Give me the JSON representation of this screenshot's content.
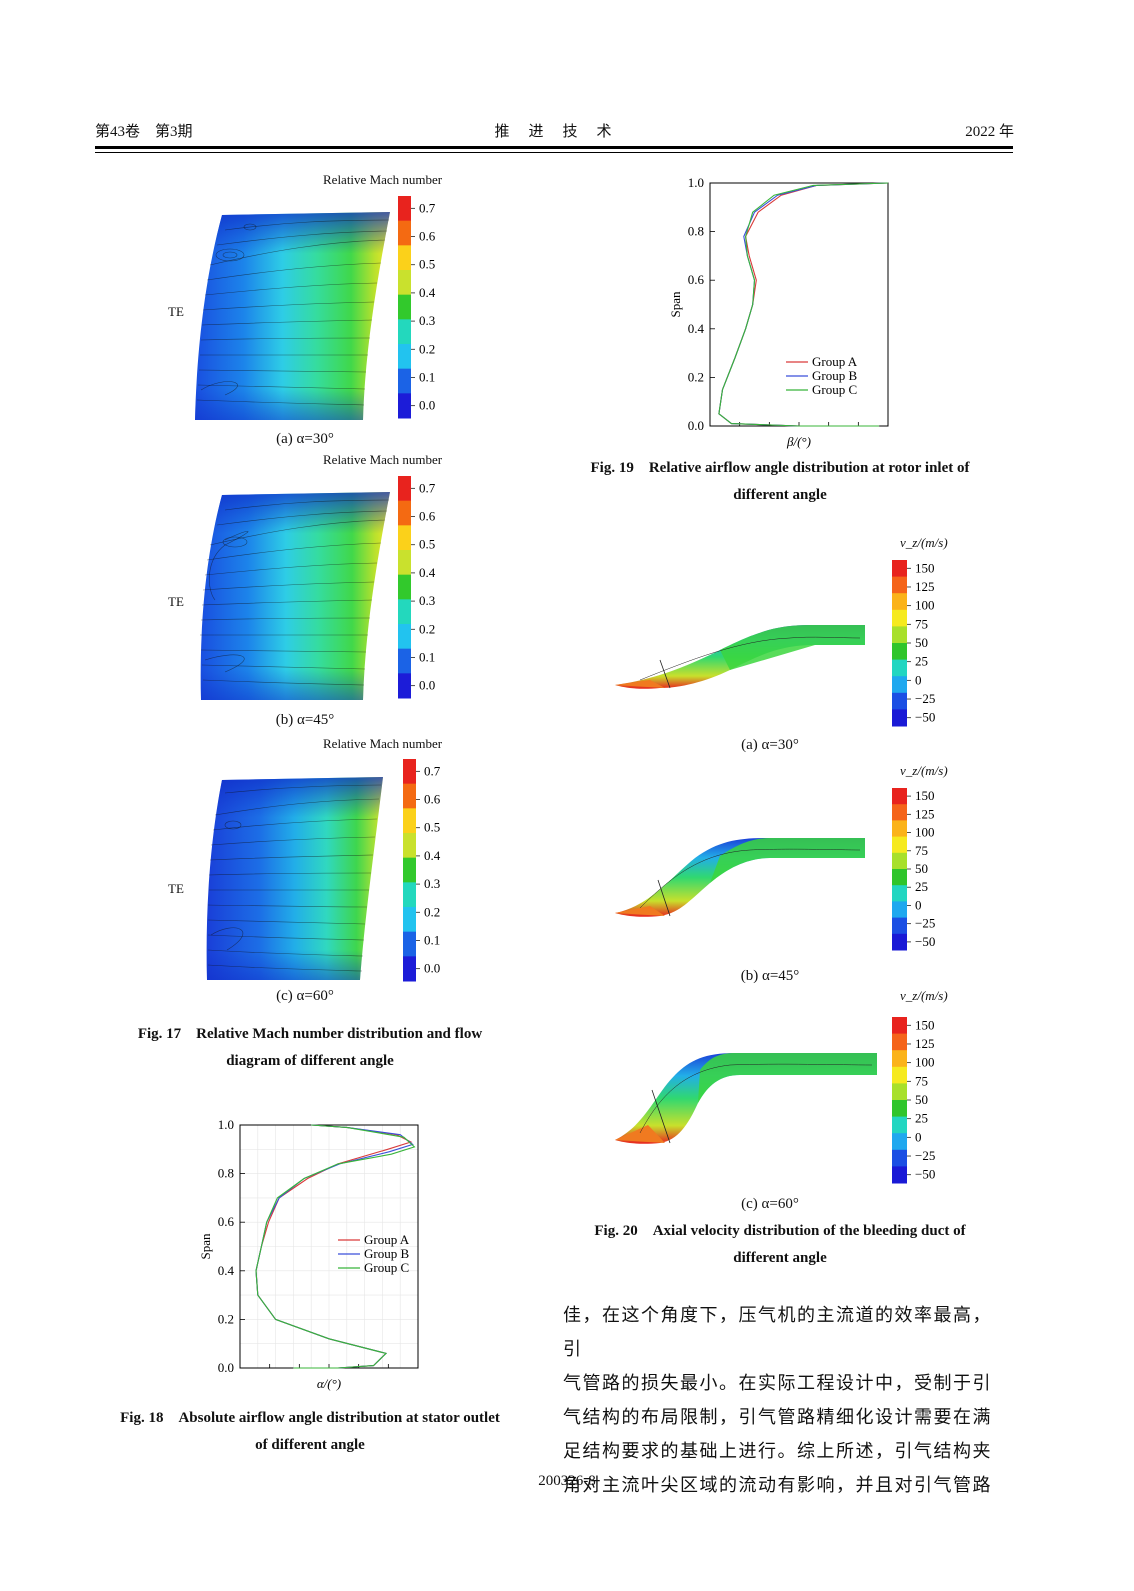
{
  "header": {
    "volume": "第43卷　第3期",
    "journal": "推　进　技　术",
    "year": "2022 年"
  },
  "fig17": {
    "colorbar_title": "Relative Mach number",
    "colorbar_ticks": [
      "0.7",
      "0.6",
      "0.5",
      "0.4",
      "0.3",
      "0.2",
      "0.1",
      "0.0"
    ],
    "colorbar_colors": [
      "#e8231e",
      "#f46a12",
      "#fbd11a",
      "#c9e12d",
      "#32c92c",
      "#23d8bd",
      "#22c3ef",
      "#1b63e6",
      "#1c1cd8"
    ],
    "te_label": "TE",
    "panels": [
      "(a) α=30°",
      "(b) α=45°",
      "(c) α=60°"
    ],
    "caption_line1": "Fig. 17　Relative Mach number distribution and flow",
    "caption_line2": "diagram of different angle"
  },
  "fig18": {
    "caption_line1": "Fig. 18　Absolute airflow angle distribution at stator outlet",
    "caption_line2": "of different angle",
    "series_colors": {
      "Group A": "#d93a3a",
      "Group B": "#3a4fd9",
      "Group C": "#38b53a"
    }
  },
  "fig19": {
    "caption_line1": "Fig. 19　Relative airflow angle distribution at rotor inlet of",
    "caption_line2": "different angle",
    "series_colors": {
      "Group A": "#d93a3a",
      "Group B": "#3a4fd9",
      "Group C": "#38b53a"
    }
  },
  "fig20": {
    "colorbar_title": "v_z/(m/s)",
    "colorbar_ticks": [
      "150",
      "125",
      "100",
      "75",
      "50",
      "25",
      "0",
      "−25",
      "−50"
    ],
    "colorbar_colors": [
      "#e8231e",
      "#f5641a",
      "#fbb31a",
      "#f6ea1f",
      "#a8e02b",
      "#2fc52b",
      "#22d6c1",
      "#1fa8ef",
      "#1b4fe4",
      "#1a1ad6"
    ],
    "panels": [
      "(a) α=30°",
      "(b) α=45°",
      "(c) α=60°"
    ],
    "caption_line1": "Fig. 20　Axial velocity distribution of the bleeding duct of",
    "caption_line2": "different angle"
  },
  "chart_data": [
    {
      "type": "line",
      "xlabel": "α/(°)",
      "ylabel": "Span",
      "ylim": [
        0,
        1.0
      ],
      "y_ticks": [
        "0.0",
        "0.2",
        "0.4",
        "0.6",
        "0.8",
        "1.0"
      ],
      "legend": "right-center",
      "series": [
        {
          "name": "Group A",
          "color": "#d93a3a",
          "points": [
            [
              0.3,
              0.0
            ],
            [
              0.55,
              0.0
            ],
            [
              0.75,
              0.01
            ],
            [
              0.82,
              0.06
            ],
            [
              0.5,
              0.12
            ],
            [
              0.2,
              0.2
            ],
            [
              0.1,
              0.3
            ],
            [
              0.09,
              0.4
            ],
            [
              0.12,
              0.5
            ],
            [
              0.16,
              0.6
            ],
            [
              0.22,
              0.7
            ],
            [
              0.38,
              0.78
            ],
            [
              0.55,
              0.84
            ],
            [
              0.83,
              0.9
            ],
            [
              0.96,
              0.93
            ],
            [
              0.88,
              0.96
            ],
            [
              0.6,
              0.99
            ],
            [
              0.4,
              1.0
            ]
          ]
        },
        {
          "name": "Group B",
          "color": "#3a4fd9",
          "points": [
            [
              0.3,
              0.0
            ],
            [
              0.55,
              0.0
            ],
            [
              0.75,
              0.01
            ],
            [
              0.82,
              0.06
            ],
            [
              0.5,
              0.12
            ],
            [
              0.2,
              0.2
            ],
            [
              0.1,
              0.3
            ],
            [
              0.09,
              0.4
            ],
            [
              0.12,
              0.5
            ],
            [
              0.15,
              0.6
            ],
            [
              0.22,
              0.7
            ],
            [
              0.36,
              0.78
            ],
            [
              0.56,
              0.84
            ],
            [
              0.84,
              0.89
            ],
            [
              0.97,
              0.92
            ],
            [
              0.9,
              0.96
            ],
            [
              0.6,
              0.99
            ],
            [
              0.4,
              1.0
            ]
          ]
        },
        {
          "name": "Group C",
          "color": "#38b53a",
          "points": [
            [
              0.3,
              0.0
            ],
            [
              0.55,
              0.0
            ],
            [
              0.75,
              0.01
            ],
            [
              0.82,
              0.06
            ],
            [
              0.5,
              0.12
            ],
            [
              0.2,
              0.2
            ],
            [
              0.1,
              0.3
            ],
            [
              0.09,
              0.4
            ],
            [
              0.12,
              0.5
            ],
            [
              0.15,
              0.6
            ],
            [
              0.21,
              0.7
            ],
            [
              0.36,
              0.78
            ],
            [
              0.55,
              0.84
            ],
            [
              0.85,
              0.88
            ],
            [
              0.98,
              0.91
            ],
            [
              0.92,
              0.95
            ],
            [
              0.6,
              0.99
            ],
            [
              0.4,
              1.0
            ]
          ]
        }
      ]
    },
    {
      "type": "line",
      "xlabel": "β/(°)",
      "ylabel": "Span",
      "ylim": [
        0,
        1.0
      ],
      "y_ticks": [
        "0.0",
        "0.2",
        "0.4",
        "0.6",
        "0.8",
        "1.0"
      ],
      "legend": "lower-right",
      "series": [
        {
          "name": "Group A",
          "color": "#d93a3a",
          "points": [
            [
              0.95,
              0.0
            ],
            [
              0.5,
              0.0
            ],
            [
              0.12,
              0.01
            ],
            [
              0.05,
              0.05
            ],
            [
              0.07,
              0.15
            ],
            [
              0.14,
              0.28
            ],
            [
              0.2,
              0.4
            ],
            [
              0.24,
              0.5
            ],
            [
              0.26,
              0.6
            ],
            [
              0.22,
              0.7
            ],
            [
              0.2,
              0.78
            ],
            [
              0.27,
              0.88
            ],
            [
              0.4,
              0.95
            ],
            [
              0.6,
              0.99
            ],
            [
              1.0,
              1.0
            ]
          ]
        },
        {
          "name": "Group B",
          "color": "#3a4fd9",
          "points": [
            [
              0.95,
              0.0
            ],
            [
              0.5,
              0.0
            ],
            [
              0.12,
              0.01
            ],
            [
              0.05,
              0.05
            ],
            [
              0.07,
              0.15
            ],
            [
              0.14,
              0.28
            ],
            [
              0.2,
              0.4
            ],
            [
              0.24,
              0.5
            ],
            [
              0.25,
              0.6
            ],
            [
              0.21,
              0.7
            ],
            [
              0.19,
              0.78
            ],
            [
              0.25,
              0.88
            ],
            [
              0.38,
              0.95
            ],
            [
              0.6,
              0.99
            ],
            [
              1.0,
              1.0
            ]
          ]
        },
        {
          "name": "Group C",
          "color": "#38b53a",
          "points": [
            [
              0.95,
              0.0
            ],
            [
              0.5,
              0.0
            ],
            [
              0.12,
              0.01
            ],
            [
              0.05,
              0.05
            ],
            [
              0.07,
              0.15
            ],
            [
              0.14,
              0.28
            ],
            [
              0.2,
              0.4
            ],
            [
              0.24,
              0.5
            ],
            [
              0.25,
              0.6
            ],
            [
              0.21,
              0.7
            ],
            [
              0.2,
              0.78
            ],
            [
              0.24,
              0.88
            ],
            [
              0.36,
              0.95
            ],
            [
              0.58,
              0.99
            ],
            [
              1.0,
              1.0
            ]
          ]
        }
      ]
    }
  ],
  "body_text": [
    "佳，在这个角度下，压气机的主流道的效率最高，引",
    "气管路的损失最小。在实际工程设计中，受制于引",
    "气结构的布局限制，引气管路精细化设计需要在满",
    "足结构要求的基础上进行。综上所述，引气结构夹",
    "角对主流叶尖区域的流动有影响，并且对引气管路"
  ],
  "footer": {
    "page_id": "200326-8"
  }
}
